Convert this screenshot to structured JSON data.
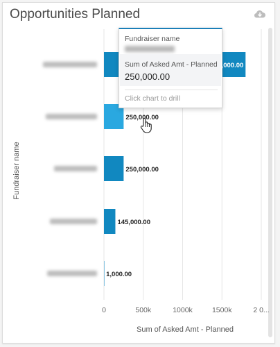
{
  "card": {
    "title": "Opportunities Planned",
    "download_icon": "cloud-download-icon"
  },
  "tooltip": {
    "field1_label": "Fundraiser name",
    "field2_label": "Sum of Asked Amt - Planned",
    "field2_value": "250,000.00",
    "drill_hint": "Click chart to drill"
  },
  "chart_data": {
    "type": "bar",
    "orientation": "horizontal",
    "ylabel": "Fundraiser name",
    "xlabel": "Sum of Asked Amt - Planned",
    "categories_blurred": true,
    "categories": [
      "",
      "",
      "",
      "",
      ""
    ],
    "values": [
      1800000,
      250000,
      250000,
      145000,
      1000
    ],
    "data_labels": [
      "1,800,000.00",
      "250,000.00",
      "250,000.00",
      "145,000.00",
      "1,000.00"
    ],
    "x_ticks": [
      "0",
      "500k",
      "1000k",
      "1500k",
      "2 0..."
    ],
    "x_tick_values": [
      0,
      500000,
      1000000,
      1500000,
      2000000
    ],
    "xlim": [
      0,
      2000000
    ],
    "grid": true,
    "colors": {
      "bar": "#1188c0",
      "bar_hover": "#2aa8e0",
      "grid": "#e6e6e6",
      "label": "#222222",
      "axis_text": "#666666"
    },
    "hovered_index": 1
  }
}
